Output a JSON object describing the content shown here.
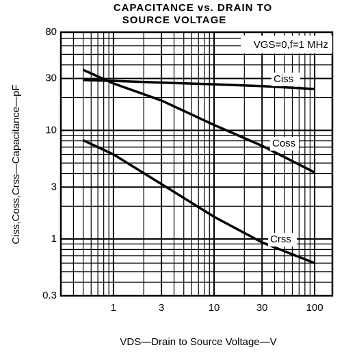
{
  "chart_data": {
    "type": "line",
    "title": [
      "CAPACITANCE vs. DRAIN TO",
      "SOURCE VOLTAGE"
    ],
    "annotation": "VGS=0,f=1 MHz",
    "x_label": "VDS—Drain to Source Voltage—V",
    "y_label": "Ciss,Coss,Crss—Capacitance—pF",
    "log_x": true,
    "log_y": true,
    "grid": true,
    "minor_grid": true,
    "xlim": [
      0.3,
      150
    ],
    "ylim": [
      0.3,
      80
    ],
    "xticks": [
      1,
      3,
      10,
      30,
      100
    ],
    "yticks": [
      0.3,
      1,
      3,
      10,
      30,
      80
    ],
    "x": [
      0.5,
      1,
      3,
      10,
      30,
      100
    ],
    "series": [
      {
        "name": "Ciss",
        "color": "#000000",
        "values": [
          29,
          28.5,
          27.5,
          26.5,
          25.5,
          24
        ]
      },
      {
        "name": "Coss",
        "color": "#000000",
        "values": [
          36,
          27,
          18.8,
          11.2,
          7.2,
          4.1
        ]
      },
      {
        "name": "Crss",
        "color": "#000000",
        "values": [
          8.1,
          6,
          3.2,
          1.6,
          0.93,
          0.6
        ]
      }
    ]
  }
}
